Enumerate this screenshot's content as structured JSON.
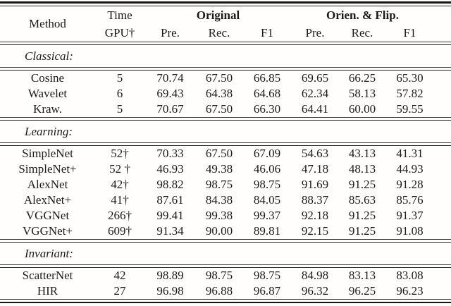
{
  "table": {
    "header": {
      "method": "Method",
      "time_line1": "Time",
      "time_line2": "GPU†",
      "group_original": "Original",
      "group_orien_flip": "Orien. & Flip.",
      "sub": [
        "Pre.",
        "Rec.",
        "F1",
        "Pre.",
        "Rec.",
        "F1"
      ]
    },
    "sections": [
      {
        "label": "Classical:",
        "rows": [
          {
            "method": "Cosine",
            "time": "5",
            "values": [
              "70.74",
              "67.50",
              "66.85",
              "69.65",
              "66.25",
              "65.30"
            ]
          },
          {
            "method": "Wavelet",
            "time": "6",
            "values": [
              "69.43",
              "64.38",
              "64.68",
              "62.34",
              "58.13",
              "57.82"
            ]
          },
          {
            "method": "Kraw.",
            "time": "5",
            "values": [
              "70.67",
              "67.50",
              "66.30",
              "64.41",
              "60.00",
              "59.55"
            ]
          }
        ]
      },
      {
        "label": "Learning:",
        "rows": [
          {
            "method": "SimpleNet",
            "time": "52†",
            "values": [
              "70.33",
              "67.50",
              "67.09",
              "54.63",
              "43.13",
              "41.31"
            ]
          },
          {
            "method": "SimpleNet+",
            "time": "52 †",
            "values": [
              "46.93",
              "49.38",
              "46.06",
              "47.18",
              "48.13",
              "44.93"
            ]
          },
          {
            "method": "AlexNet",
            "time": "42†",
            "values": [
              "98.82",
              "98.75",
              "98.75",
              "91.69",
              "91.25",
              "91.28"
            ]
          },
          {
            "method": "AlexNet+",
            "time": "41†",
            "values": [
              "87.61",
              "84.38",
              "84.05",
              "88.37",
              "85.63",
              "85.76"
            ]
          },
          {
            "method": "VGGNet",
            "time": "266†",
            "values": [
              "99.41",
              "99.38",
              "99.37",
              "92.18",
              "91.25",
              "91.37"
            ]
          },
          {
            "method": "VGGNet+",
            "time": "609†",
            "values": [
              "91.34",
              "90.00",
              "89.81",
              "92.15",
              "91.25",
              "91.08"
            ]
          }
        ]
      },
      {
        "label": "Invariant:",
        "rows": [
          {
            "method": "ScatterNet",
            "time": "42",
            "values": [
              "98.89",
              "98.75",
              "98.75",
              "84.98",
              "83.13",
              "83.08"
            ]
          },
          {
            "method": "HIR",
            "time": "27",
            "values": [
              "96.98",
              "96.88",
              "96.87",
              "96.32",
              "96.25",
              "96.23"
            ]
          }
        ]
      }
    ]
  }
}
